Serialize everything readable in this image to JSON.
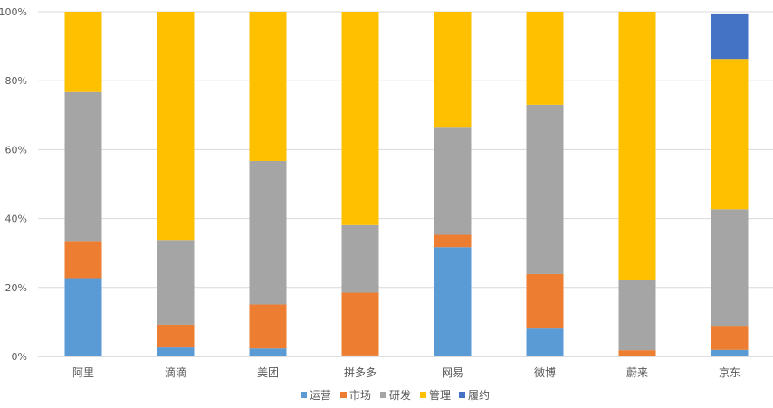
{
  "chart_data": {
    "type": "bar",
    "stacked": true,
    "categories": [
      "阿里",
      "滴滴",
      "美团",
      "拼多多",
      "网易",
      "微博",
      "蔚来",
      "京东"
    ],
    "series": [
      {
        "name": "运营",
        "color": "#5B9BD5",
        "values": [
          22.7,
          2.6,
          2.3,
          0.3,
          31.7,
          8.1,
          0,
          1.9
        ]
      },
      {
        "name": "市场",
        "color": "#ED7D31",
        "values": [
          10.8,
          6.6,
          12.8,
          18.2,
          3.6,
          15.8,
          1.8,
          7.0
        ]
      },
      {
        "name": "研发",
        "color": "#A5A5A5",
        "values": [
          43.2,
          24.6,
          41.6,
          19.6,
          31.3,
          49.1,
          20.3,
          33.8
        ]
      },
      {
        "name": "管理",
        "color": "#FFC000",
        "values": [
          23.3,
          66.2,
          43.3,
          61.9,
          33.4,
          27.0,
          77.9,
          43.6
        ]
      },
      {
        "name": "履约",
        "color": "#4472C4",
        "values": [
          0,
          0,
          0,
          0,
          0,
          0,
          0,
          13.2
        ]
      }
    ],
    "yticks": [
      "0%",
      "20%",
      "40%",
      "60%",
      "80%",
      "100%"
    ],
    "ylim": [
      0,
      100
    ],
    "grid": true,
    "legend": "bottom",
    "title": "",
    "xlabel": "",
    "ylabel": ""
  }
}
